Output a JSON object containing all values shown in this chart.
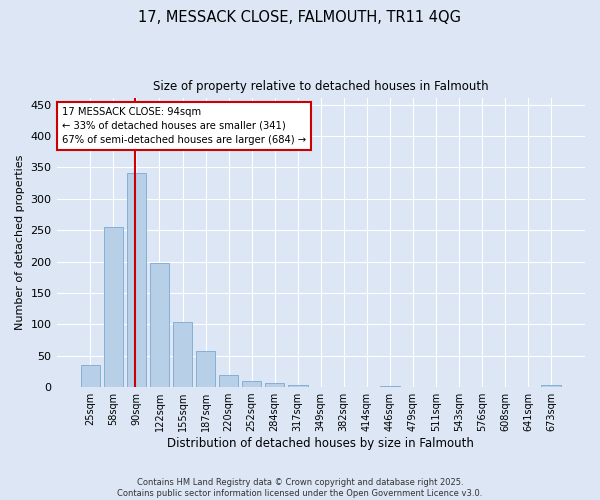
{
  "title": "17, MESSACK CLOSE, FALMOUTH, TR11 4QG",
  "subtitle": "Size of property relative to detached houses in Falmouth",
  "xlabel": "Distribution of detached houses by size in Falmouth",
  "ylabel": "Number of detached properties",
  "footer_line1": "Contains HM Land Registry data © Crown copyright and database right 2025.",
  "footer_line2": "Contains public sector information licensed under the Open Government Licence v3.0.",
  "categories": [
    "25sqm",
    "58sqm",
    "90sqm",
    "122sqm",
    "155sqm",
    "187sqm",
    "220sqm",
    "252sqm",
    "284sqm",
    "317sqm",
    "349sqm",
    "382sqm",
    "414sqm",
    "446sqm",
    "479sqm",
    "511sqm",
    "543sqm",
    "576sqm",
    "608sqm",
    "641sqm",
    "673sqm"
  ],
  "values": [
    35,
    255,
    341,
    198,
    103,
    57,
    19,
    10,
    7,
    4,
    0,
    0,
    0,
    2,
    0,
    0,
    0,
    0,
    0,
    0,
    3
  ],
  "bar_color": "#b8cfe8",
  "bar_edge_color": "#7aaad0",
  "background_color": "#dce6f5",
  "grid_color": "#ffffff",
  "vline_color": "#cc0000",
  "vline_x": 1.95,
  "annotation_line1": "17 MESSACK CLOSE: 94sqm",
  "annotation_line2": "← 33% of detached houses are smaller (341)",
  "annotation_line3": "67% of semi-detached houses are larger (684) →",
  "annotation_box_color": "#ffffff",
  "annotation_box_edge_color": "#cc0000",
  "ylim": [
    0,
    460
  ],
  "yticks": [
    0,
    50,
    100,
    150,
    200,
    250,
    300,
    350,
    400,
    450
  ]
}
